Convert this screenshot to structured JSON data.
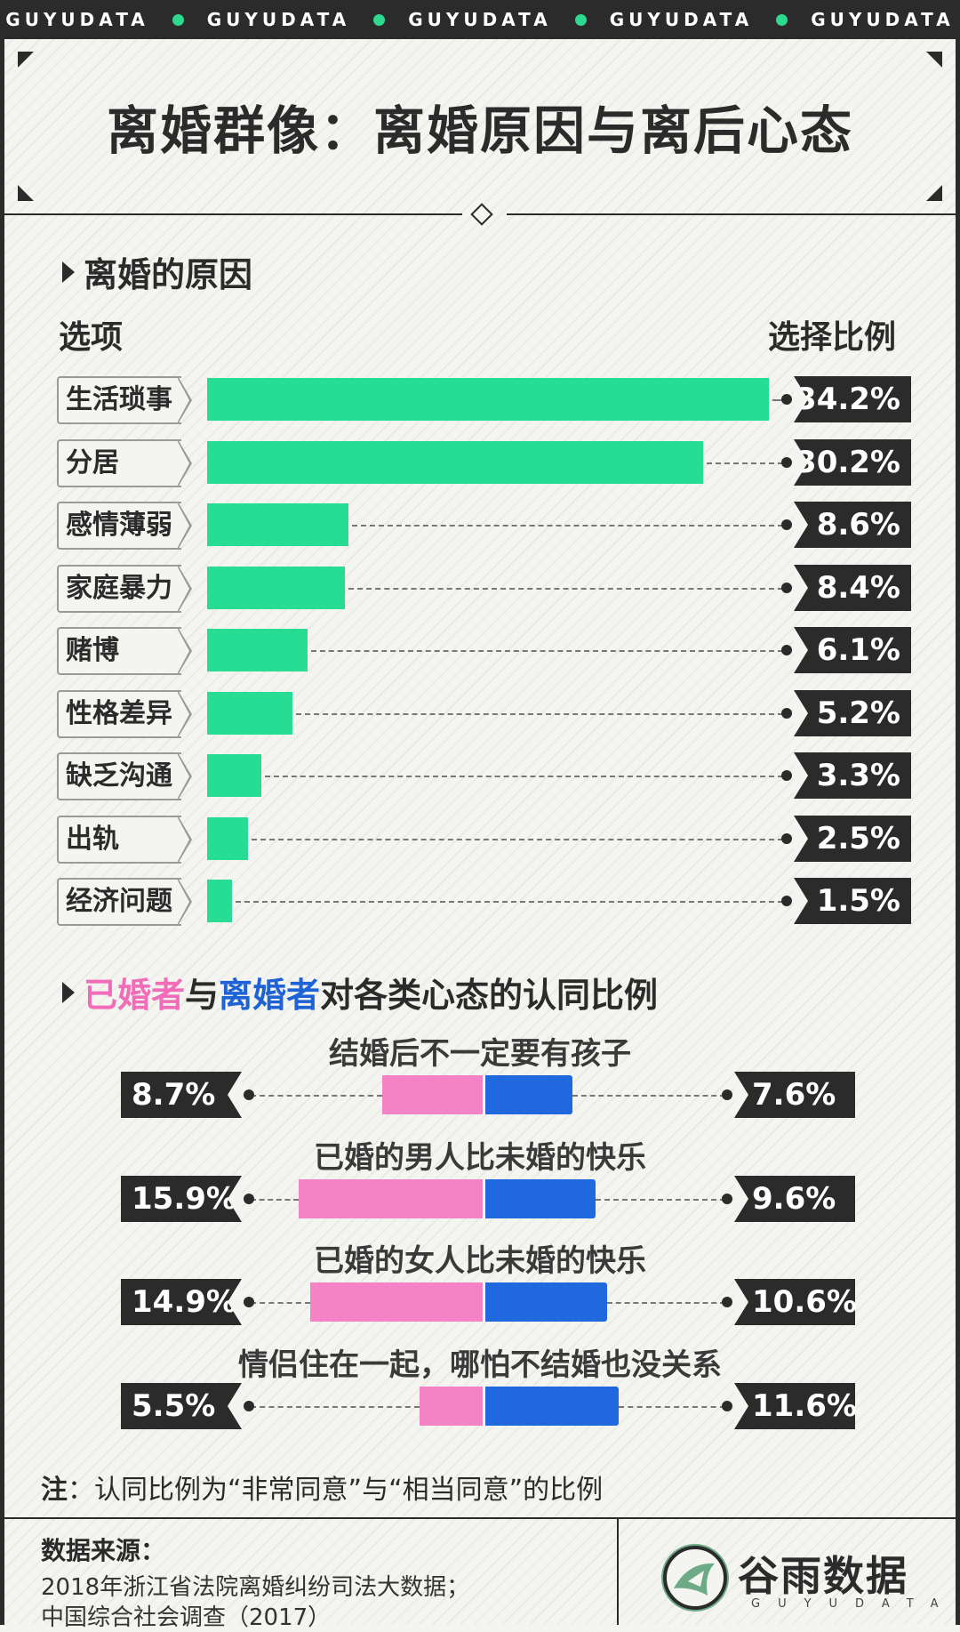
{
  "banner": {
    "items": [
      "GUYUDATA",
      "GUYUDATA",
      "GUYUDATA",
      "GUYUDATA",
      "GUYUDATA"
    ]
  },
  "title": "离婚群像：离婚原因与离后心态",
  "section1": {
    "title": "离婚的原因",
    "col_option": "选项",
    "col_ratio": "选择比例"
  },
  "section2": {
    "title_part1": "已婚者",
    "title_part2": "与",
    "title_part3": "离婚者",
    "title_part4": "对各类心态的认同比例"
  },
  "chart_data": [
    {
      "type": "bar",
      "orientation": "horizontal",
      "title": "离婚的原因",
      "categories": [
        "生活琐事",
        "分居",
        "感情薄弱",
        "家庭暴力",
        "赌博",
        "性格差异",
        "缺乏沟通",
        "出轨",
        "经济问题"
      ],
      "values": [
        34.2,
        30.2,
        8.6,
        8.4,
        6.1,
        5.2,
        3.3,
        2.5,
        1.5
      ],
      "value_labels": [
        "34.2%",
        "30.2%",
        "8.6%",
        "8.4%",
        "6.1%",
        "5.2%",
        "3.3%",
        "2.5%",
        "1.5%"
      ],
      "unit": "%",
      "color": "#27dc93"
    },
    {
      "type": "bar",
      "orientation": "diverging",
      "title": "已婚者与离婚者对各类心态的认同比例",
      "categories": [
        "结婚后不一定要有孩子",
        "已婚的男人比未婚的快乐",
        "已婚的女人比未婚的快乐",
        "情侣住在一起，哪怕不结婚也没关系"
      ],
      "series": [
        {
          "name": "已婚者",
          "values": [
            8.7,
            15.9,
            14.9,
            5.5
          ],
          "labels": [
            "8.7%",
            "15.9%",
            "14.9%",
            "5.5%"
          ],
          "color": "#f483c6"
        },
        {
          "name": "离婚者",
          "values": [
            7.6,
            9.6,
            10.6,
            11.6
          ],
          "labels": [
            "7.6%",
            "9.6%",
            "10.6%",
            "11.6%"
          ],
          "color": "#1f68de"
        }
      ],
      "unit": "%"
    }
  ],
  "note": {
    "prefix": "注",
    "text": "：认同比例为“非常同意”与“相当同意”的比例"
  },
  "source": {
    "title": "数据来源：",
    "lines": [
      "2018年浙江省法院离婚纠纷司法大数据；",
      "中国综合社会调查（2017）"
    ]
  },
  "logo": {
    "name": "谷雨数据",
    "sub": "GUYUDATA"
  }
}
